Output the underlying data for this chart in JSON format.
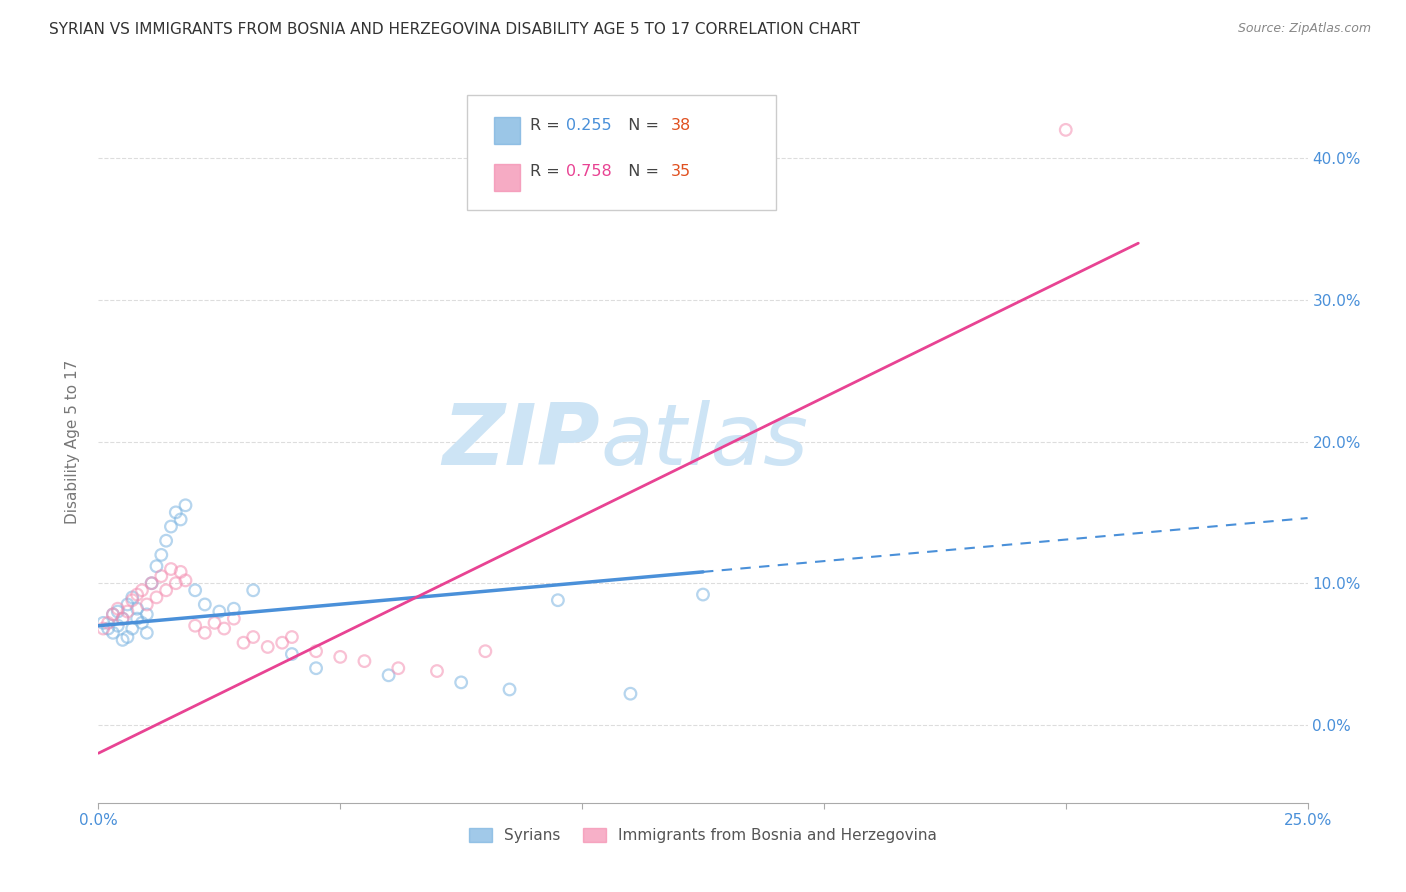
{
  "title": "SYRIAN VS IMMIGRANTS FROM BOSNIA AND HERZEGOVINA DISABILITY AGE 5 TO 17 CORRELATION CHART",
  "source": "Source: ZipAtlas.com",
  "ylabel": "Disability Age 5 to 17",
  "xlim": [
    0.0,
    0.25
  ],
  "ylim": [
    -0.055,
    0.455
  ],
  "xticks": [
    0.0,
    0.05,
    0.1,
    0.15,
    0.2,
    0.25
  ],
  "yticks_right": [
    0.0,
    0.1,
    0.2,
    0.3,
    0.4
  ],
  "ytick_labels_right": [
    "0.0%",
    "10.0%",
    "20.0%",
    "30.0%",
    "40.0%"
  ],
  "xtick_labels": [
    "0.0%",
    "",
    "",
    "",
    "",
    "25.0%"
  ],
  "legend_entries": [
    {
      "label": "R = 0.255   N = 38",
      "color": "#7ab3e0"
    },
    {
      "label": "R = 0.758   N = 35",
      "color": "#f48fb1"
    }
  ],
  "legend_bottom": [
    {
      "label": "Syrians",
      "color": "#7ab3e0"
    },
    {
      "label": "Immigrants from Bosnia and Herzegovina",
      "color": "#f48fb1"
    }
  ],
  "syrians_x": [
    0.001,
    0.002,
    0.003,
    0.003,
    0.004,
    0.004,
    0.005,
    0.005,
    0.006,
    0.006,
    0.007,
    0.007,
    0.008,
    0.008,
    0.009,
    0.01,
    0.01,
    0.011,
    0.012,
    0.013,
    0.014,
    0.015,
    0.016,
    0.017,
    0.018,
    0.02,
    0.022,
    0.025,
    0.028,
    0.032,
    0.04,
    0.045,
    0.06,
    0.075,
    0.085,
    0.095,
    0.11,
    0.125
  ],
  "syrians_y": [
    0.072,
    0.068,
    0.078,
    0.065,
    0.08,
    0.07,
    0.075,
    0.06,
    0.085,
    0.062,
    0.09,
    0.068,
    0.082,
    0.075,
    0.072,
    0.078,
    0.065,
    0.1,
    0.112,
    0.12,
    0.13,
    0.14,
    0.15,
    0.145,
    0.155,
    0.095,
    0.085,
    0.08,
    0.082,
    0.095,
    0.05,
    0.04,
    0.035,
    0.03,
    0.025,
    0.088,
    0.022,
    0.092
  ],
  "bosnia_x": [
    0.001,
    0.002,
    0.003,
    0.004,
    0.005,
    0.006,
    0.007,
    0.008,
    0.009,
    0.01,
    0.011,
    0.012,
    0.013,
    0.014,
    0.015,
    0.016,
    0.017,
    0.018,
    0.02,
    0.022,
    0.024,
    0.026,
    0.028,
    0.03,
    0.032,
    0.035,
    0.038,
    0.04,
    0.045,
    0.05,
    0.055,
    0.062,
    0.07,
    0.08,
    0.2
  ],
  "bosnia_y": [
    0.068,
    0.072,
    0.078,
    0.082,
    0.075,
    0.08,
    0.088,
    0.092,
    0.095,
    0.085,
    0.1,
    0.09,
    0.105,
    0.095,
    0.11,
    0.1,
    0.108,
    0.102,
    0.07,
    0.065,
    0.072,
    0.068,
    0.075,
    0.058,
    0.062,
    0.055,
    0.058,
    0.062,
    0.052,
    0.048,
    0.045,
    0.04,
    0.038,
    0.052,
    0.42
  ],
  "blue_line_solid": {
    "x0": 0.0,
    "y0": 0.07,
    "x1": 0.125,
    "y1": 0.108
  },
  "blue_line_dash": {
    "x0": 0.125,
    "y0": 0.108,
    "x1": 0.25,
    "y1": 0.146
  },
  "pink_line": {
    "x0": 0.0,
    "y0": -0.02,
    "x1": 0.215,
    "y1": 0.34
  },
  "background_color": "#ffffff",
  "grid_color": "#dddddd",
  "title_color": "#333333",
  "title_fontsize": 11,
  "axis_label_color": "#777777",
  "tick_color_blue": "#4a90d9",
  "source_fontsize": 9,
  "watermark_color": "#cde4f5",
  "dot_size": 70,
  "dot_alpha": 0.55,
  "blue_dot_color": "#7ab3e0",
  "pink_dot_color": "#f48fb1",
  "blue_line_color": "#4a90d9",
  "pink_line_color": "#e84393"
}
